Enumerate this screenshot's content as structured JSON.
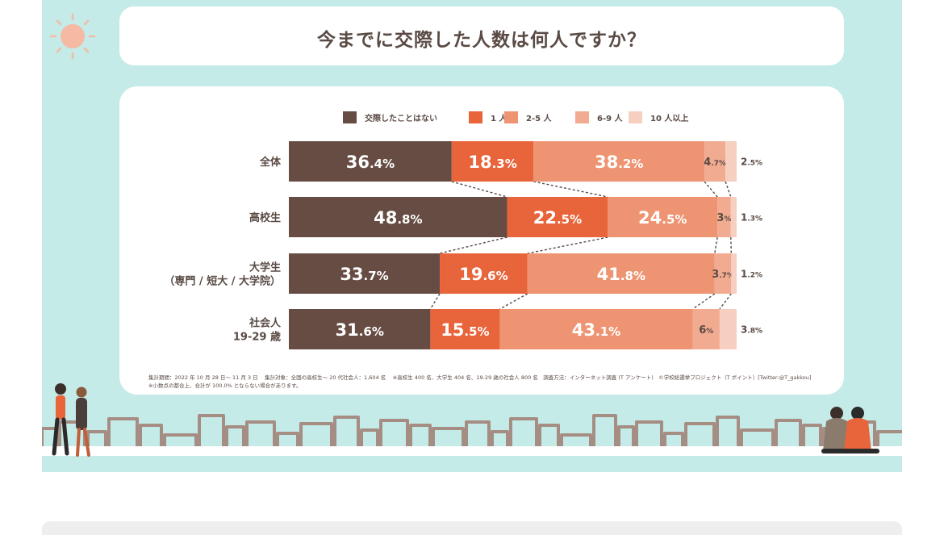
{
  "title": "今までに交際した人数は何人ですか？",
  "notes": {
    "line1": "集計期間：2022 年 10 月 28 日〜 11 月 3 日　 集計対象：全国の高校生〜 20 代社会人：1,604 名 　※高校生 400 名、大学生 404 名、19-29 歳の社会人 800 名　調査方法：インターネット調査 (T アンケート)　©学校総選挙プロジェクト（T ポイント）[Twitter:@T_gakkou]",
    "line2": "※小数点の都合上、合計が 100.0% とならない場合があります。"
  },
  "chart_data": {
    "type": "bar",
    "orientation": "horizontal",
    "stacked": true,
    "percent_stacked": true,
    "legend_position": "top",
    "title": "今までに交際した人数は何人ですか？",
    "xlabel": "",
    "ylabel": "",
    "categories": [
      [
        "全体"
      ],
      [
        "高校生"
      ],
      [
        "大学生",
        "（専門 / 短大 / 大学院）"
      ],
      [
        "社会人",
        "19-29 歳"
      ]
    ],
    "series": [
      {
        "name": "交際したことはない",
        "color": "#664c42",
        "values": [
          36.4,
          48.8,
          33.7,
          31.6
        ]
      },
      {
        "name": "1 人",
        "color": "#e8643a",
        "values": [
          18.3,
          22.5,
          19.6,
          15.5
        ]
      },
      {
        "name": "2-5 人",
        "color": "#ee9472",
        "values": [
          38.2,
          24.5,
          41.8,
          43.1
        ]
      },
      {
        "name": "6-9 人",
        "color": "#f0ab90",
        "values": [
          4.7,
          3,
          3.7,
          6
        ]
      },
      {
        "name": "10 人以上",
        "color": "#f6cfc1",
        "values": [
          2.5,
          1.3,
          1.2,
          3.8
        ]
      }
    ],
    "value_labels": [
      [
        "36.4%",
        "18.3%",
        "38.2%",
        "4.7%",
        "2.5%"
      ],
      [
        "48.8%",
        "22.5%",
        "24.5%",
        "3%",
        "1.3%"
      ],
      [
        "33.7%",
        "19.6%",
        "41.8%",
        "3.7%",
        "1.2%"
      ],
      [
        "31.6%",
        "15.5%",
        "43.1%",
        "6%",
        "3.8%"
      ]
    ],
    "connector_lines": "dashed"
  },
  "colors": {
    "background": "#c4ebe7",
    "card": "#ffffff",
    "text": "#5a4a44",
    "sun": "#f5b9a4",
    "skyline": "#a58d84"
  }
}
